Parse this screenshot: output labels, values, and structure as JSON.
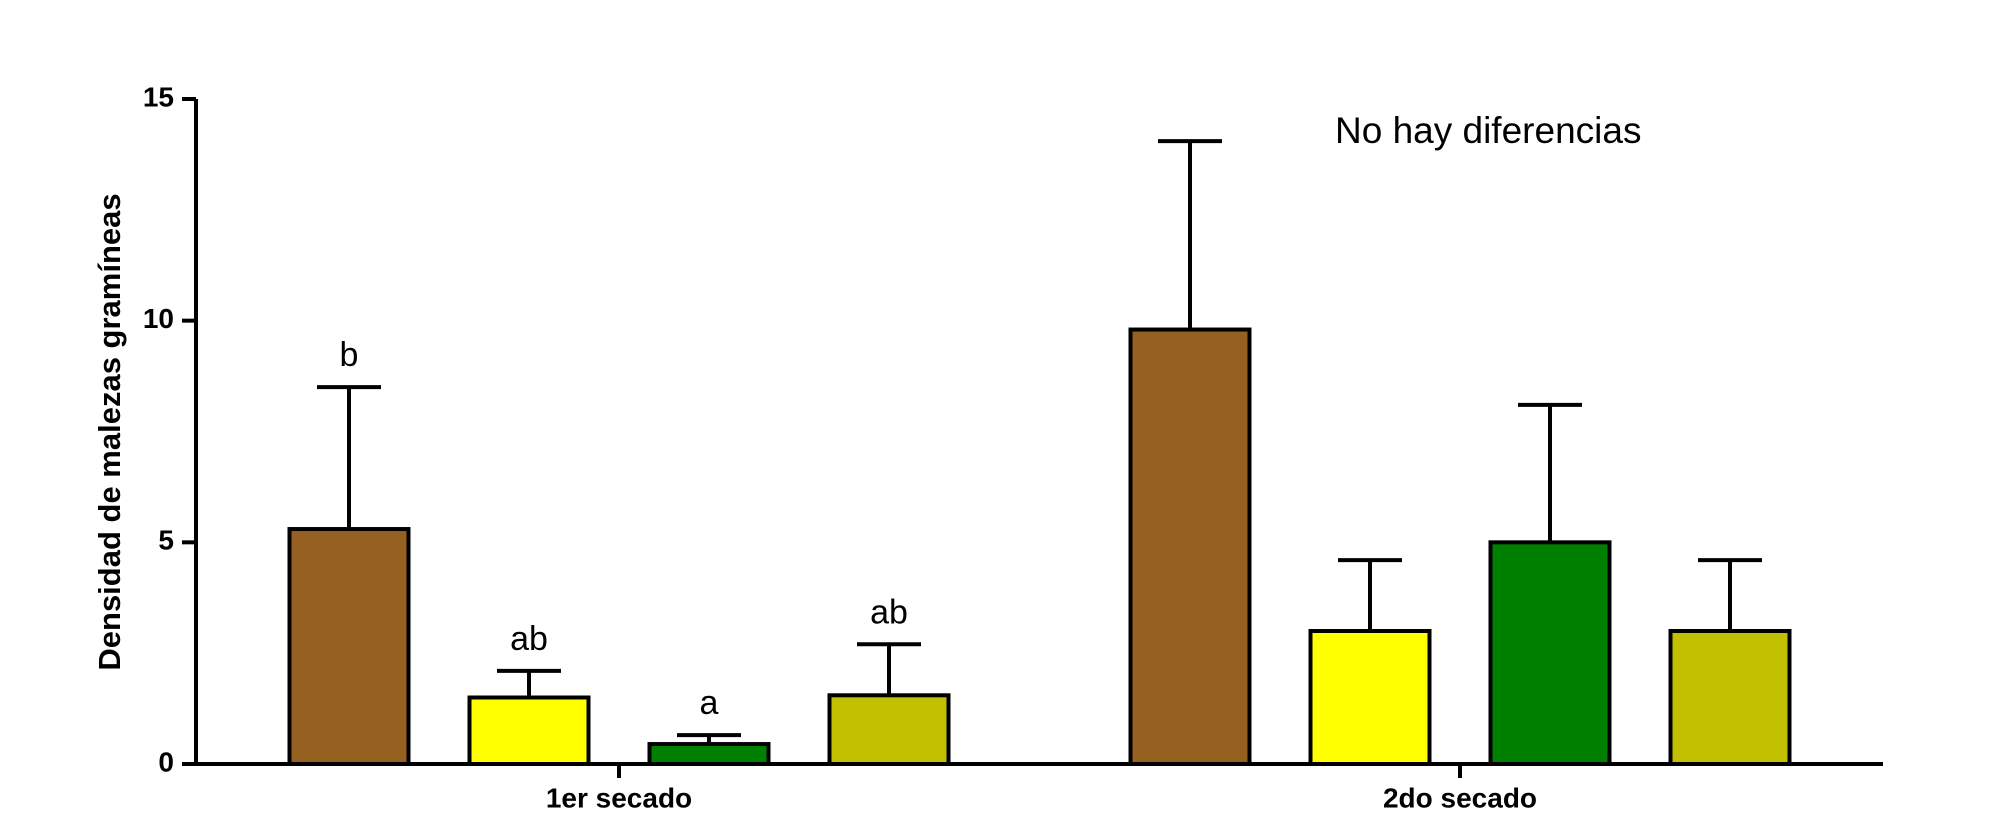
{
  "chart_data": {
    "type": "bar",
    "y_label": "Densidad de malezas gramíneas",
    "categories": [
      "1er secado",
      "2do secado"
    ],
    "series": [
      {
        "color": "#956020",
        "values": [
          5.3,
          9.8
        ],
        "errors": [
          3.2,
          4.25
        ],
        "labels": [
          "b",
          null
        ]
      },
      {
        "color": "#ffff00",
        "values": [
          1.5,
          3.0
        ],
        "errors": [
          0.6,
          1.6
        ],
        "labels": [
          "ab",
          null
        ]
      },
      {
        "color": "#008000",
        "values": [
          0.45,
          5.0
        ],
        "errors": [
          0.2,
          3.1
        ],
        "labels": [
          "a",
          null
        ]
      },
      {
        "color": "#c0c000",
        "values": [
          1.55,
          3.0
        ],
        "errors": [
          1.15,
          1.6
        ],
        "labels": [
          "ab",
          null
        ]
      }
    ],
    "annotation": "No hay diferencias",
    "ylim": [
      0,
      15
    ],
    "yticks": [
      0,
      5,
      10,
      15
    ]
  }
}
